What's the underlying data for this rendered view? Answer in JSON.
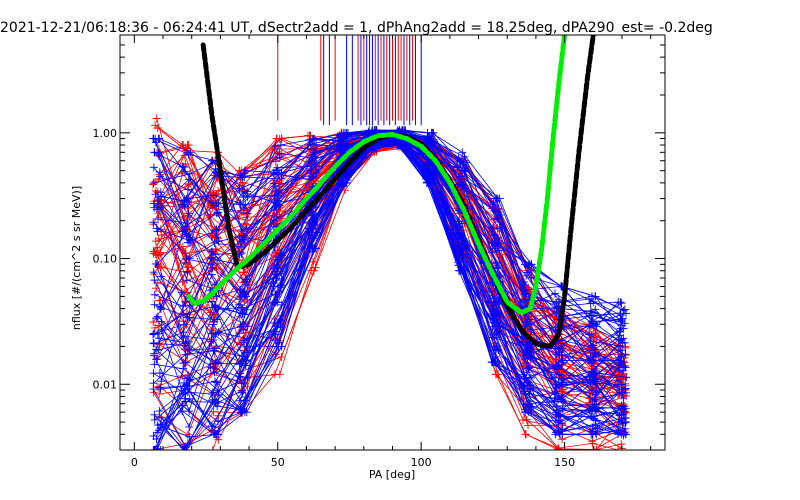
{
  "chart_data": {
    "type": "line",
    "title": "2021-12-21/06:18:36 - 06:24:41 UT, dSectr2add = 1, dPhAng2add = 18.25deg, dPA290_est=  -0.2deg",
    "xlabel": "PA [deg]",
    "ylabel": "nflux [#/(cm^2 s sr MeV)]",
    "x_scale": "linear",
    "y_scale": "log",
    "xlim": [
      -5,
      185
    ],
    "ylim": [
      0.003,
      6.0
    ],
    "x_ticks": [
      0,
      50,
      100,
      150
    ],
    "x_tick_labels": [
      "0",
      "50",
      "100",
      "150"
    ],
    "y_ticks": [
      0.01,
      0.1,
      1.0
    ],
    "y_tick_labels": [
      "0.01",
      "0.10",
      "1.00"
    ],
    "grid": false,
    "colors": {
      "red_series": "#ff0000",
      "blue_series": "#0000ff",
      "black_fit": "#000000",
      "green_fit": "#00ee00"
    },
    "series": [
      {
        "color_key": "red_series",
        "style": "plus-marked lines, many overlapping spectra",
        "angle_bins": [
          8,
          18,
          28,
          38,
          50,
          62,
          73,
          83,
          93,
          103,
          114,
          126,
          137,
          148,
          160,
          170
        ],
        "envelope_high": [
          1.3,
          0.8,
          0.7,
          0.5,
          0.9,
          0.95,
          1.0,
          1.0,
          0.95,
          0.9,
          0.6,
          0.25,
          0.08,
          0.04,
          0.03,
          0.02
        ],
        "envelope_low": [
          0.003,
          0.003,
          0.003,
          0.005,
          0.012,
          0.08,
          0.35,
          0.7,
          0.75,
          0.45,
          0.1,
          0.012,
          0.004,
          0.003,
          0.003,
          0.003
        ]
      },
      {
        "color_key": "blue_series",
        "style": "plus-marked lines, many overlapping spectra",
        "angle_bins": [
          8,
          18,
          28,
          38,
          50,
          62,
          73,
          83,
          93,
          103,
          114,
          126,
          137,
          148,
          160,
          170
        ],
        "envelope_high": [
          0.9,
          0.7,
          0.6,
          0.5,
          0.8,
          0.9,
          1.0,
          1.05,
          1.05,
          1.0,
          0.7,
          0.3,
          0.09,
          0.06,
          0.05,
          0.045
        ],
        "envelope_low": [
          0.003,
          0.003,
          0.004,
          0.006,
          0.02,
          0.12,
          0.4,
          0.75,
          0.8,
          0.4,
          0.08,
          0.015,
          0.006,
          0.004,
          0.004,
          0.004
        ]
      },
      {
        "color_key": "black_fit",
        "style": "thick dashed fit curve",
        "x": [
          24,
          27,
          30,
          33,
          36,
          40,
          45,
          50,
          55,
          60,
          65,
          70,
          75,
          80,
          85,
          90,
          95,
          100,
          105,
          110,
          115,
          120,
          125,
          130,
          135,
          140,
          145,
          148,
          150,
          152,
          155,
          158,
          160
        ],
        "y": [
          5.0,
          1.4,
          0.5,
          0.17,
          0.085,
          0.09,
          0.11,
          0.14,
          0.18,
          0.24,
          0.32,
          0.43,
          0.58,
          0.76,
          0.9,
          0.97,
          0.93,
          0.82,
          0.62,
          0.42,
          0.26,
          0.14,
          0.075,
          0.042,
          0.027,
          0.021,
          0.02,
          0.025,
          0.05,
          0.15,
          0.7,
          2.8,
          6.0
        ]
      },
      {
        "color_key": "green_fit",
        "style": "thick dashed fit curve",
        "x": [
          19,
          21,
          24,
          27,
          30,
          35,
          40,
          45,
          50,
          55,
          60,
          65,
          70,
          75,
          80,
          85,
          90,
          95,
          100,
          105,
          110,
          115,
          120,
          125,
          130,
          135,
          138,
          140,
          142,
          144,
          146,
          148,
          150
        ],
        "y": [
          0.05,
          0.044,
          0.046,
          0.052,
          0.062,
          0.08,
          0.1,
          0.13,
          0.17,
          0.22,
          0.3,
          0.4,
          0.54,
          0.7,
          0.85,
          0.95,
          0.97,
          0.9,
          0.78,
          0.6,
          0.4,
          0.24,
          0.13,
          0.075,
          0.045,
          0.037,
          0.04,
          0.06,
          0.12,
          0.3,
          0.9,
          2.5,
          6.0
        ]
      }
    ],
    "top_vertical_lines": {
      "red_x": [
        50,
        65,
        70,
        78,
        80,
        84,
        86,
        88,
        90,
        92,
        93,
        95,
        97
      ],
      "blue_x": [
        66,
        68,
        74,
        76,
        79,
        81,
        82,
        83,
        85,
        87,
        89,
        91,
        94,
        96,
        98,
        100
      ]
    }
  }
}
